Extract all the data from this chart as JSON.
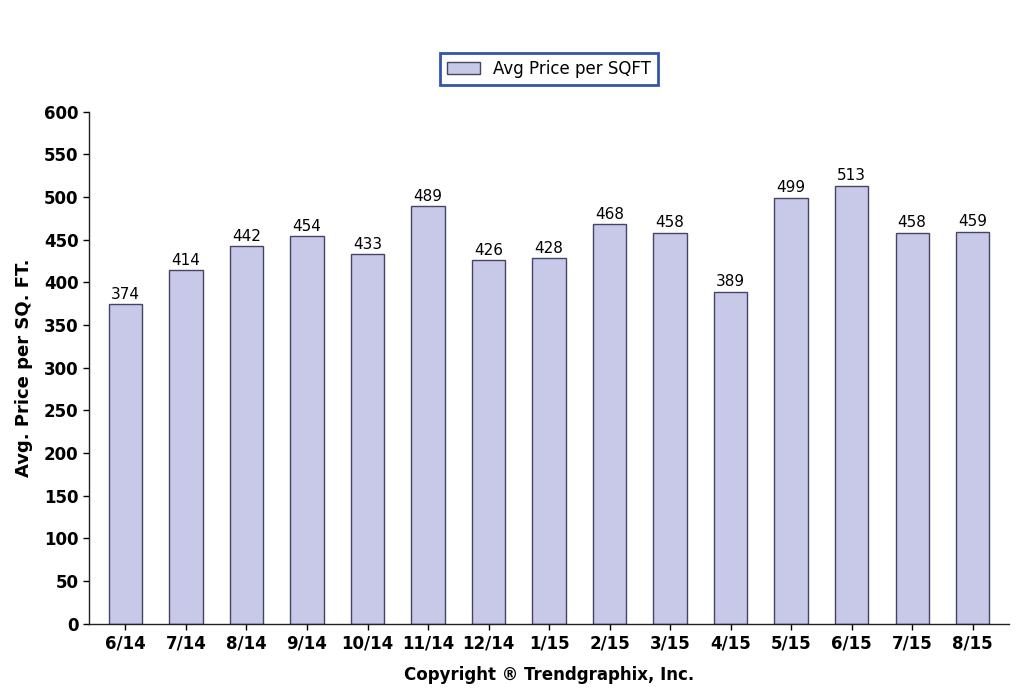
{
  "categories": [
    "6/14",
    "7/14",
    "8/14",
    "9/14",
    "10/14",
    "11/14",
    "12/14",
    "1/15",
    "2/15",
    "3/15",
    "4/15",
    "5/15",
    "6/15",
    "7/15",
    "8/15"
  ],
  "values": [
    374,
    414,
    442,
    454,
    433,
    489,
    426,
    428,
    468,
    458,
    389,
    499,
    513,
    458,
    459
  ],
  "bar_color": "#c8c8e8",
  "bar_edge_color": "#444466",
  "bar_edge_width": 1.0,
  "ylabel": "Avg. Price per SQ. FT.",
  "xlabel": "Copyright ® Trendgraphix, Inc.",
  "legend_label": "Avg Price per SQFT",
  "ylim": [
    0,
    600
  ],
  "ytick_interval": 50,
  "ytick_fontsize": 12,
  "xtick_fontsize": 12,
  "ylabel_fontsize": 13,
  "xlabel_fontsize": 12,
  "bar_label_fontsize": 11,
  "legend_fontsize": 12,
  "background_color": "#ffffff",
  "figure_bg": "#ffffff",
  "bar_width": 0.55,
  "legend_edge_color": "#3355aa",
  "spine_color": "#222222"
}
